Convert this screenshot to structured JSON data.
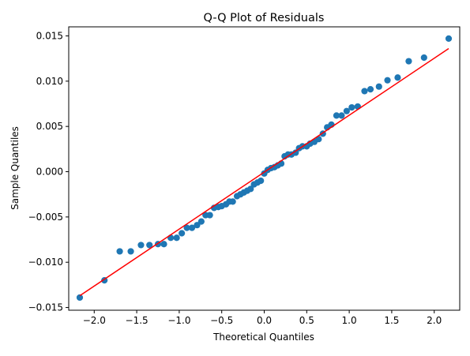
{
  "chart_data": {
    "type": "scatter",
    "title": "Q-Q Plot of Residuals",
    "xlabel": "Theoretical Quantiles",
    "ylabel": "Sample Quantiles",
    "xlim": [
      -2.3,
      2.3
    ],
    "ylim": [
      -0.0153,
      0.016
    ],
    "x_ticks": [
      -2.0,
      -1.5,
      -1.0,
      -0.5,
      0.0,
      0.5,
      1.0,
      1.5,
      2.0
    ],
    "x_tick_labels": [
      "−2.0",
      "−1.5",
      "−1.0",
      "−0.5",
      "0.0",
      "0.5",
      "1.0",
      "1.5",
      "2.0"
    ],
    "y_ticks": [
      -0.015,
      -0.01,
      -0.005,
      0.0,
      0.005,
      0.01,
      0.015
    ],
    "y_tick_labels": [
      "−0.015",
      "−0.010",
      "−0.005",
      "0.000",
      "0.005",
      "0.010",
      "0.015"
    ],
    "grid": false,
    "series": [
      {
        "color": "#1f77b4",
        "points": [
          [
            -2.17,
            -0.0139
          ],
          [
            -1.88,
            -0.012
          ],
          [
            -1.7,
            -0.0088
          ],
          [
            -1.57,
            -0.0088
          ],
          [
            -1.45,
            -0.0081
          ],
          [
            -1.35,
            -0.0081
          ],
          [
            -1.25,
            -0.008
          ],
          [
            -1.18,
            -0.008
          ],
          [
            -1.1,
            -0.0073
          ],
          [
            -1.03,
            -0.0073
          ],
          [
            -0.97,
            -0.0068
          ],
          [
            -0.91,
            -0.0062
          ],
          [
            -0.85,
            -0.0062
          ],
          [
            -0.79,
            -0.0059
          ],
          [
            -0.74,
            -0.0055
          ],
          [
            -0.69,
            -0.0048
          ],
          [
            -0.64,
            -0.0048
          ],
          [
            -0.59,
            -0.004
          ],
          [
            -0.54,
            -0.0039
          ],
          [
            -0.5,
            -0.0038
          ],
          [
            -0.45,
            -0.0036
          ],
          [
            -0.41,
            -0.0033
          ],
          [
            -0.37,
            -0.0033
          ],
          [
            -0.32,
            -0.0027
          ],
          [
            -0.28,
            -0.0025
          ],
          [
            -0.24,
            -0.0023
          ],
          [
            -0.2,
            -0.0021
          ],
          [
            -0.16,
            -0.0019
          ],
          [
            -0.12,
            -0.0014
          ],
          [
            -0.08,
            -0.0012
          ],
          [
            -0.04,
            -0.001
          ],
          [
            0.0,
            -0.0002
          ],
          [
            0.04,
            0.0002
          ],
          [
            0.08,
            0.0004
          ],
          [
            0.12,
            0.0005
          ],
          [
            0.16,
            0.0007
          ],
          [
            0.2,
            0.0009
          ],
          [
            0.24,
            0.0017
          ],
          [
            0.28,
            0.0019
          ],
          [
            0.32,
            0.0019
          ],
          [
            0.37,
            0.0021
          ],
          [
            0.41,
            0.0026
          ],
          [
            0.45,
            0.0028
          ],
          [
            0.5,
            0.0028
          ],
          [
            0.54,
            0.0031
          ],
          [
            0.59,
            0.0033
          ],
          [
            0.64,
            0.0036
          ],
          [
            0.69,
            0.0042
          ],
          [
            0.74,
            0.0049
          ],
          [
            0.79,
            0.0052
          ],
          [
            0.85,
            0.0062
          ],
          [
            0.91,
            0.0062
          ],
          [
            0.97,
            0.0067
          ],
          [
            1.03,
            0.0071
          ],
          [
            1.1,
            0.0072
          ],
          [
            1.18,
            0.0089
          ],
          [
            1.25,
            0.0091
          ],
          [
            1.35,
            0.0094
          ],
          [
            1.45,
            0.0101
          ],
          [
            1.57,
            0.0104
          ],
          [
            1.7,
            0.0122
          ],
          [
            1.88,
            0.0126
          ],
          [
            2.17,
            0.0147
          ]
        ]
      }
    ],
    "reference_line": {
      "color": "#ff0000",
      "x": [
        -2.17,
        2.17
      ],
      "y": [
        -0.0137,
        0.0136
      ]
    }
  }
}
